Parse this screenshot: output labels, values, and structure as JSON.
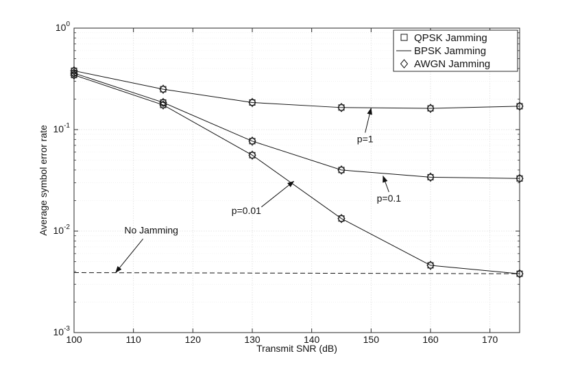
{
  "chart_data": {
    "type": "line",
    "xlabel": "Transmit SNR (dB)",
    "ylabel": "Average symbol error rate",
    "xlim": [
      100,
      175
    ],
    "ylim": [
      0.001,
      1
    ],
    "yscale": "log",
    "grid": true,
    "legend_position": "top-right",
    "xticks": [
      100,
      110,
      120,
      130,
      140,
      150,
      160,
      170
    ],
    "xtick_labels": [
      "100",
      "110",
      "120",
      "130",
      "140",
      "150",
      "160",
      "170"
    ],
    "yticks": [
      {
        "value": 1,
        "base": "10",
        "exp": "0"
      },
      {
        "value": 0.1,
        "base": "10",
        "exp": "-1"
      },
      {
        "value": 0.01,
        "base": "10",
        "exp": "-2"
      },
      {
        "value": 0.001,
        "base": "10",
        "exp": "-3"
      }
    ],
    "legend": [
      "QPSK Jamming",
      "BPSK Jamming",
      "AWGN Jamming"
    ],
    "x": [
      100,
      115,
      130,
      145,
      160,
      175
    ],
    "series": [
      {
        "label": "p=1",
        "values": [
          0.38,
          0.25,
          0.185,
          0.165,
          0.162,
          0.17
        ]
      },
      {
        "label": "p=0.1",
        "values": [
          0.36,
          0.185,
          0.077,
          0.04,
          0.034,
          0.033
        ]
      },
      {
        "label": "p=0.01",
        "values": [
          0.345,
          0.175,
          0.056,
          0.0133,
          0.0046,
          0.0038
        ]
      }
    ],
    "reference": {
      "label": "No Jamming",
      "x": [
        100,
        175
      ],
      "values": [
        0.0039,
        0.0038
      ]
    },
    "annotations": [
      {
        "text": "p=1",
        "text_at": [
          149,
          0.075
        ],
        "arrow_to": [
          150,
          0.163
        ]
      },
      {
        "text": "p=0.1",
        "text_at": [
          153,
          0.0195
        ],
        "arrow_to": [
          152,
          0.035
        ]
      },
      {
        "text": "p=0.01",
        "text_at": [
          129,
          0.0148
        ],
        "arrow_to": [
          137,
          0.031
        ]
      },
      {
        "text": "No Jamming",
        "text_at": [
          113,
          0.0095
        ],
        "arrow_to": [
          107,
          0.0039
        ]
      }
    ]
  }
}
